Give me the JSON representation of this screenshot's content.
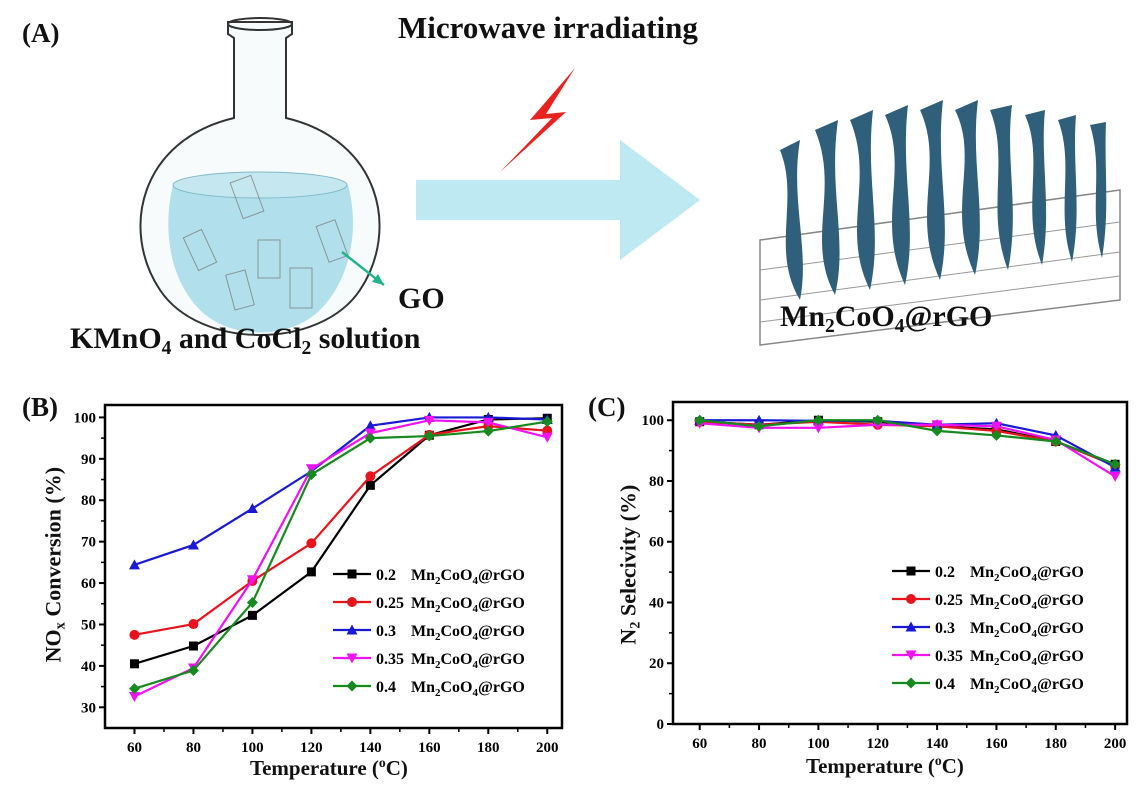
{
  "panel_a": {
    "label": "(A)",
    "title": "Microwave irradiating",
    "go_label": "GO",
    "solution_label": {
      "p1": "KMnO",
      "s1": "4",
      "p2": " and CoCl",
      "s2": "2",
      "p3": " solution"
    },
    "product_label": {
      "p1": "Mn",
      "s1": "2",
      "p2": "CoO",
      "s2": "4",
      "p3": "@rGO"
    },
    "colors": {
      "solution": "#a9dbe9",
      "arrow": "#bfe9f2",
      "lightning": "#e8231f",
      "sheets": "#2f5f7a",
      "pointer": "#22b38a"
    }
  },
  "chart_data": [
    {
      "panel_label": "(B)",
      "type": "line",
      "x": [
        60,
        80,
        100,
        120,
        140,
        160,
        180,
        200
      ],
      "xlabel": {
        "p1": "Temperature (",
        "sup": "o",
        "p2": "C)"
      },
      "ylabel": {
        "p1": "NO",
        "sub": "x",
        "p2": " Conversion (%)"
      },
      "xlim": [
        50,
        205
      ],
      "ylim": [
        25,
        103
      ],
      "xticks": [
        60,
        80,
        100,
        120,
        140,
        160,
        180,
        200
      ],
      "yticks": [
        30,
        40,
        50,
        60,
        70,
        80,
        90,
        100
      ],
      "grid": false,
      "legend_position": "center-right",
      "series": [
        {
          "name": "0.2   Mn2CoO4@rGO",
          "ratio": "0.2",
          "color": "#000000",
          "marker": "square",
          "values": [
            40.5,
            44.8,
            52.2,
            62.7,
            83.6,
            95.7,
            99.5,
            99.8
          ]
        },
        {
          "name": "0.25 Mn2CoO4@rGO",
          "ratio": "0.25",
          "color": "#e8141c",
          "marker": "circle",
          "values": [
            47.5,
            50.1,
            60.5,
            69.6,
            85.8,
            95.8,
            97.9,
            96.8
          ]
        },
        {
          "name": "0.3   Mn2CoO4@rGO",
          "ratio": "0.3",
          "color": "#1a1ad6",
          "marker": "triangle-up",
          "values": [
            64.4,
            69.2,
            78.0,
            87.0,
            98.0,
            100.0,
            100.0,
            99.5
          ]
        },
        {
          "name": "0.35 Mn2CoO4@rGO",
          "ratio": "0.35",
          "color": "#f012f0",
          "marker": "triangle-down",
          "values": [
            32.6,
            39.5,
            60.8,
            87.6,
            96.2,
            99.3,
            98.8,
            95.2
          ]
        },
        {
          "name": "0.4   Mn2CoO4@rGO",
          "ratio": "0.4",
          "color": "#168a1e",
          "marker": "diamond",
          "values": [
            34.5,
            38.9,
            55.3,
            86.2,
            95.0,
            95.5,
            96.7,
            99.0
          ]
        }
      ]
    },
    {
      "panel_label": "(C)",
      "type": "line",
      "x": [
        60,
        80,
        100,
        120,
        140,
        160,
        180,
        200
      ],
      "xlabel": {
        "p1": "Temperature (",
        "sup": "o",
        "p2": "C)"
      },
      "ylabel": {
        "p1": "N",
        "sub": "2",
        "p2": " Selecivity (%)"
      },
      "xlim": [
        51,
        204
      ],
      "ylim": [
        0,
        106
      ],
      "xticks": [
        60,
        80,
        100,
        120,
        140,
        160,
        180,
        200
      ],
      "yticks": [
        0,
        20,
        40,
        60,
        80,
        100
      ],
      "grid": false,
      "legend_position": "center-right",
      "series": [
        {
          "name": "0.2   Mn2CoO4@rGO",
          "ratio": "0.2",
          "color": "#000000",
          "marker": "square",
          "values": [
            99.5,
            98.5,
            100.0,
            99.5,
            98.0,
            97.0,
            93.0,
            85.5
          ]
        },
        {
          "name": "0.25 Mn2CoO4@rGO",
          "ratio": "0.25",
          "color": "#e8141c",
          "marker": "circle",
          "values": [
            99.5,
            98.5,
            99.5,
            98.5,
            98.0,
            96.5,
            93.0,
            85.0
          ]
        },
        {
          "name": "0.3   Mn2CoO4@rGO",
          "ratio": "0.3",
          "color": "#1a1ad6",
          "marker": "triangle-up",
          "values": [
            100.0,
            100.0,
            99.8,
            99.8,
            98.5,
            99.0,
            95.0,
            84.5
          ]
        },
        {
          "name": "0.35 Mn2CoO4@rGO",
          "ratio": "0.35",
          "color": "#f012f0",
          "marker": "triangle-down",
          "values": [
            99.0,
            97.5,
            97.5,
            98.5,
            98.5,
            98.0,
            93.5,
            81.5
          ]
        },
        {
          "name": "0.4   Mn2CoO4@rGO",
          "ratio": "0.4",
          "color": "#168a1e",
          "marker": "diamond",
          "values": [
            100.0,
            98.0,
            100.0,
            100.0,
            96.5,
            95.0,
            93.0,
            85.5
          ]
        }
      ]
    }
  ],
  "legend_sample": {
    "p1": "Mn",
    "s1": "2",
    "p2": "CoO",
    "s2": "4",
    "p3": "@rGO"
  }
}
